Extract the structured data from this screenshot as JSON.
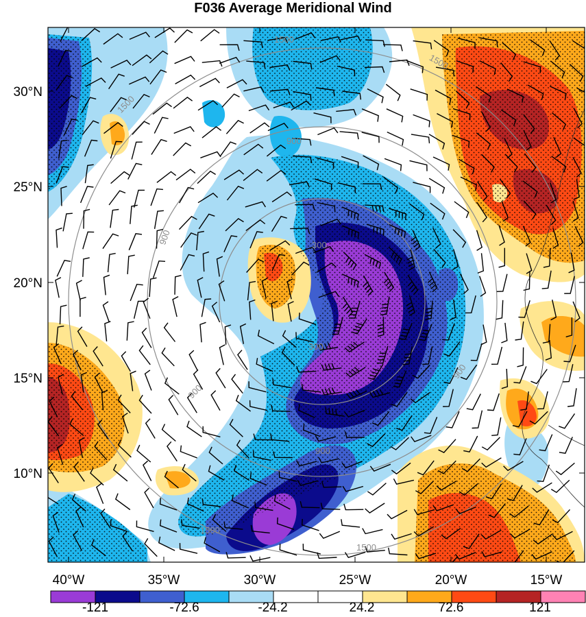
{
  "title": "F036 Average Meridional Wind",
  "map": {
    "lat_labels": [
      "30°N",
      "25°N",
      "20°N",
      "15°N",
      "10°N"
    ],
    "lon_labels": [
      "40°W",
      "35°W",
      "30°W",
      "25°W",
      "20°W",
      "15°W"
    ],
    "contour_labels": [
      "300",
      "300",
      "900",
      "900",
      "900",
      "900",
      "1500",
      "1500",
      "1500",
      "1500",
      "1500",
      "900"
    ]
  },
  "colorbar": {
    "colors": [
      "#9a3bd6",
      "#0b0b8c",
      "#3f5fcf",
      "#1eb6ee",
      "#a9dcf5",
      "#ffffff",
      "#ffffff",
      "#ffe690",
      "#ffa91b",
      "#ff4a14",
      "#b52424",
      "#ff82b4"
    ],
    "labels": [
      "-121",
      "-72.6",
      "-24.2",
      "24.2",
      "72.6",
      "121"
    ]
  }
}
